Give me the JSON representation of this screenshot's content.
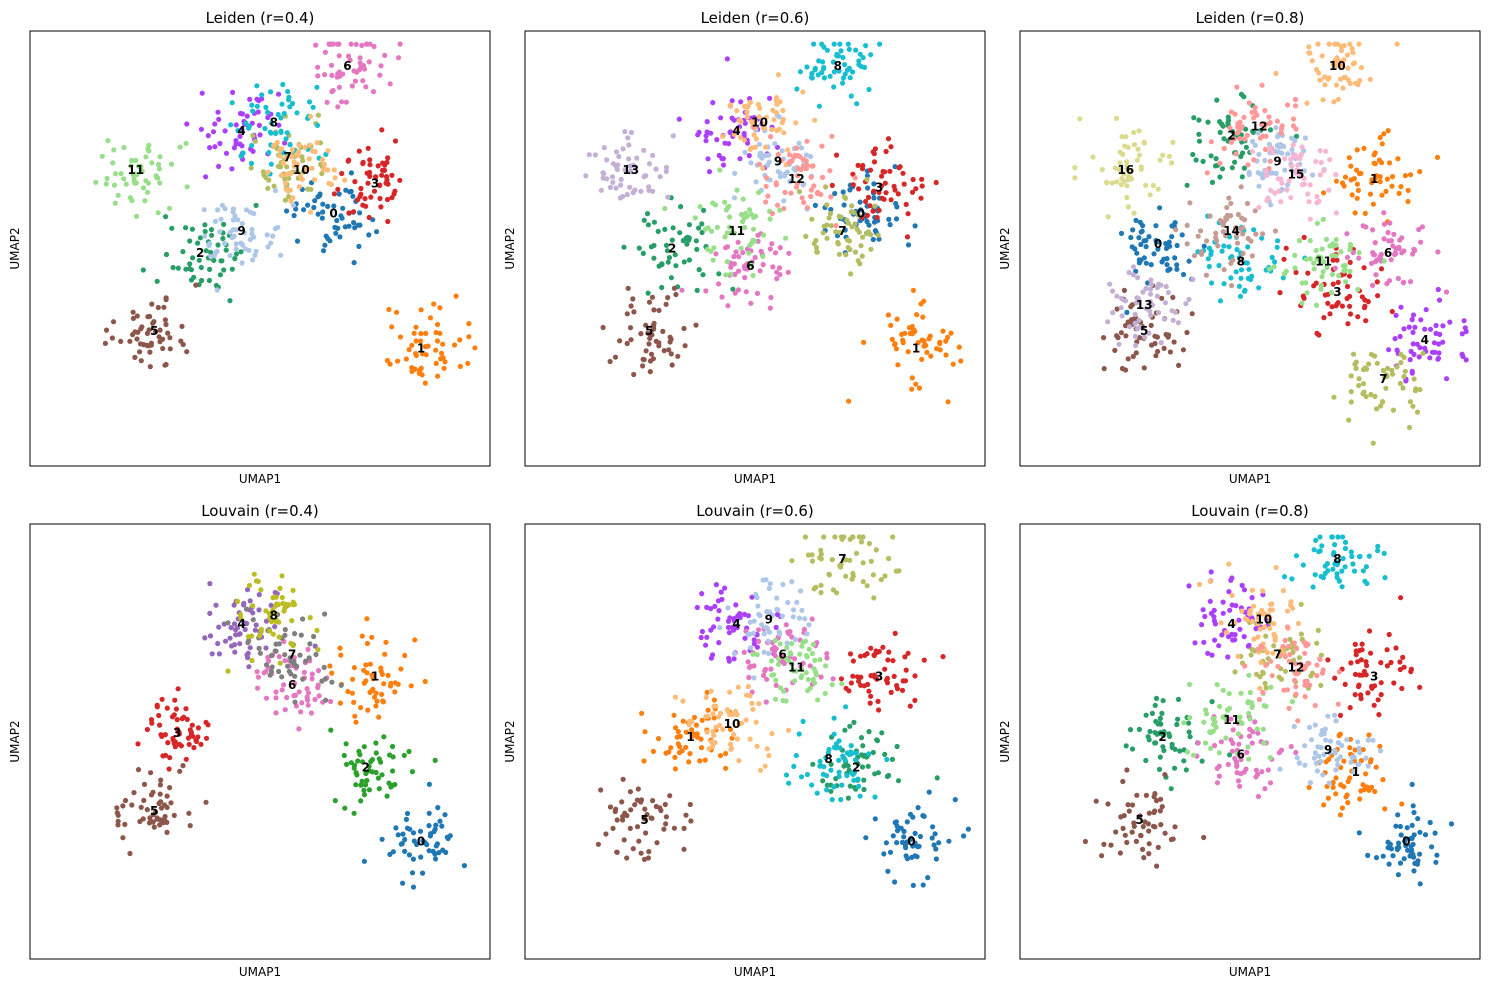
{
  "figure": {
    "x_label": "UMAP1",
    "y_label": "UMAP2"
  },
  "palette": [
    "#1f77b4",
    "#ff7f0e",
    "#279e68",
    "#d62728",
    "#aa40fc",
    "#8c564b",
    "#e377c2",
    "#b5bd61",
    "#17becf",
    "#aec7e8",
    "#ffbb78",
    "#98df8a",
    "#ff9896",
    "#c5b0d5",
    "#c49c94",
    "#f7b6d2",
    "#dbdb8d"
  ],
  "louvain_04_palette": [
    "#1f77b4",
    "#ff7f0e",
    "#2ca02c",
    "#d62728",
    "#9467bd",
    "#8c564b",
    "#e377c2",
    "#7f7f7f",
    "#bcbd22"
  ],
  "chart_data": [
    {
      "type": "scatter",
      "title": "Leiden (r=0.4)",
      "xlabel": "UMAP1",
      "ylabel": "UMAP2",
      "palette_key": "palette",
      "clusters": [
        {
          "label": "0",
          "x": 0.66,
          "y": 0.58
        },
        {
          "label": "1",
          "x": 0.85,
          "y": 0.27
        },
        {
          "label": "2",
          "x": 0.37,
          "y": 0.49
        },
        {
          "label": "3",
          "x": 0.75,
          "y": 0.65
        },
        {
          "label": "4",
          "x": 0.46,
          "y": 0.77
        },
        {
          "label": "5",
          "x": 0.27,
          "y": 0.31
        },
        {
          "label": "6",
          "x": 0.69,
          "y": 0.92
        },
        {
          "label": "7",
          "x": 0.56,
          "y": 0.71
        },
        {
          "label": "8",
          "x": 0.53,
          "y": 0.79
        },
        {
          "label": "9",
          "x": 0.46,
          "y": 0.54
        },
        {
          "label": "10",
          "x": 0.59,
          "y": 0.68
        },
        {
          "label": "11",
          "x": 0.23,
          "y": 0.68
        }
      ]
    },
    {
      "type": "scatter",
      "title": "Leiden (r=0.6)",
      "xlabel": "UMAP1",
      "ylabel": "UMAP2",
      "palette_key": "palette",
      "clusters": [
        {
          "label": "0",
          "x": 0.73,
          "y": 0.58
        },
        {
          "label": "1",
          "x": 0.85,
          "y": 0.27
        },
        {
          "label": "2",
          "x": 0.32,
          "y": 0.5
        },
        {
          "label": "3",
          "x": 0.77,
          "y": 0.64
        },
        {
          "label": "4",
          "x": 0.46,
          "y": 0.77
        },
        {
          "label": "5",
          "x": 0.27,
          "y": 0.31
        },
        {
          "label": "6",
          "x": 0.49,
          "y": 0.46
        },
        {
          "label": "7",
          "x": 0.69,
          "y": 0.54
        },
        {
          "label": "8",
          "x": 0.68,
          "y": 0.92
        },
        {
          "label": "9",
          "x": 0.55,
          "y": 0.7
        },
        {
          "label": "10",
          "x": 0.51,
          "y": 0.79
        },
        {
          "label": "11",
          "x": 0.46,
          "y": 0.54
        },
        {
          "label": "12",
          "x": 0.59,
          "y": 0.66
        },
        {
          "label": "13",
          "x": 0.23,
          "y": 0.68
        }
      ]
    },
    {
      "type": "scatter",
      "title": "Leiden (r=0.8)",
      "xlabel": "UMAP1",
      "ylabel": "UMAP2",
      "palette_key": "palette",
      "clusters": [
        {
          "label": "0",
          "x": 0.3,
          "y": 0.51
        },
        {
          "label": "1",
          "x": 0.77,
          "y": 0.66
        },
        {
          "label": "2",
          "x": 0.46,
          "y": 0.76
        },
        {
          "label": "3",
          "x": 0.69,
          "y": 0.4
        },
        {
          "label": "4",
          "x": 0.88,
          "y": 0.29
        },
        {
          "label": "5",
          "x": 0.27,
          "y": 0.31
        },
        {
          "label": "6",
          "x": 0.8,
          "y": 0.49
        },
        {
          "label": "7",
          "x": 0.79,
          "y": 0.2
        },
        {
          "label": "8",
          "x": 0.48,
          "y": 0.47
        },
        {
          "label": "9",
          "x": 0.56,
          "y": 0.7
        },
        {
          "label": "10",
          "x": 0.69,
          "y": 0.92
        },
        {
          "label": "11",
          "x": 0.66,
          "y": 0.47
        },
        {
          "label": "12",
          "x": 0.52,
          "y": 0.78
        },
        {
          "label": "13",
          "x": 0.27,
          "y": 0.37
        },
        {
          "label": "14",
          "x": 0.46,
          "y": 0.54
        },
        {
          "label": "15",
          "x": 0.6,
          "y": 0.67
        },
        {
          "label": "16",
          "x": 0.23,
          "y": 0.68
        }
      ]
    },
    {
      "type": "scatter",
      "title": "Louvain (r=0.4)",
      "xlabel": "UMAP1",
      "ylabel": "UMAP2",
      "palette_key": "louvain_04_palette",
      "clusters": [
        {
          "label": "0",
          "x": 0.85,
          "y": 0.27
        },
        {
          "label": "1",
          "x": 0.75,
          "y": 0.65
        },
        {
          "label": "2",
          "x": 0.73,
          "y": 0.44
        },
        {
          "label": "3",
          "x": 0.32,
          "y": 0.52
        },
        {
          "label": "4",
          "x": 0.46,
          "y": 0.77
        },
        {
          "label": "5",
          "x": 0.27,
          "y": 0.34
        },
        {
          "label": "6",
          "x": 0.57,
          "y": 0.63
        },
        {
          "label": "7",
          "x": 0.57,
          "y": 0.7
        },
        {
          "label": "8",
          "x": 0.53,
          "y": 0.79
        }
      ]
    },
    {
      "type": "scatter",
      "title": "Louvain (r=0.6)",
      "xlabel": "UMAP1",
      "ylabel": "UMAP2",
      "palette_key": "palette",
      "clusters": [
        {
          "label": "0",
          "x": 0.84,
          "y": 0.27
        },
        {
          "label": "1",
          "x": 0.36,
          "y": 0.51
        },
        {
          "label": "2",
          "x": 0.72,
          "y": 0.44
        },
        {
          "label": "3",
          "x": 0.77,
          "y": 0.65
        },
        {
          "label": "4",
          "x": 0.46,
          "y": 0.77
        },
        {
          "label": "5",
          "x": 0.26,
          "y": 0.32
        },
        {
          "label": "6",
          "x": 0.56,
          "y": 0.7
        },
        {
          "label": "7",
          "x": 0.69,
          "y": 0.92
        },
        {
          "label": "8",
          "x": 0.66,
          "y": 0.46
        },
        {
          "label": "9",
          "x": 0.53,
          "y": 0.78
        },
        {
          "label": "10",
          "x": 0.45,
          "y": 0.54
        },
        {
          "label": "11",
          "x": 0.59,
          "y": 0.67
        }
      ]
    },
    {
      "type": "scatter",
      "title": "Louvain (r=0.8)",
      "xlabel": "UMAP1",
      "ylabel": "UMAP2",
      "palette_key": "palette",
      "clusters": [
        {
          "label": "0",
          "x": 0.84,
          "y": 0.27
        },
        {
          "label": "1",
          "x": 0.73,
          "y": 0.43
        },
        {
          "label": "2",
          "x": 0.31,
          "y": 0.51
        },
        {
          "label": "3",
          "x": 0.77,
          "y": 0.65
        },
        {
          "label": "4",
          "x": 0.46,
          "y": 0.77
        },
        {
          "label": "5",
          "x": 0.26,
          "y": 0.32
        },
        {
          "label": "6",
          "x": 0.48,
          "y": 0.47
        },
        {
          "label": "7",
          "x": 0.56,
          "y": 0.7
        },
        {
          "label": "8",
          "x": 0.69,
          "y": 0.92
        },
        {
          "label": "9",
          "x": 0.67,
          "y": 0.48
        },
        {
          "label": "10",
          "x": 0.53,
          "y": 0.78
        },
        {
          "label": "11",
          "x": 0.46,
          "y": 0.55
        },
        {
          "label": "12",
          "x": 0.6,
          "y": 0.67
        }
      ]
    }
  ]
}
